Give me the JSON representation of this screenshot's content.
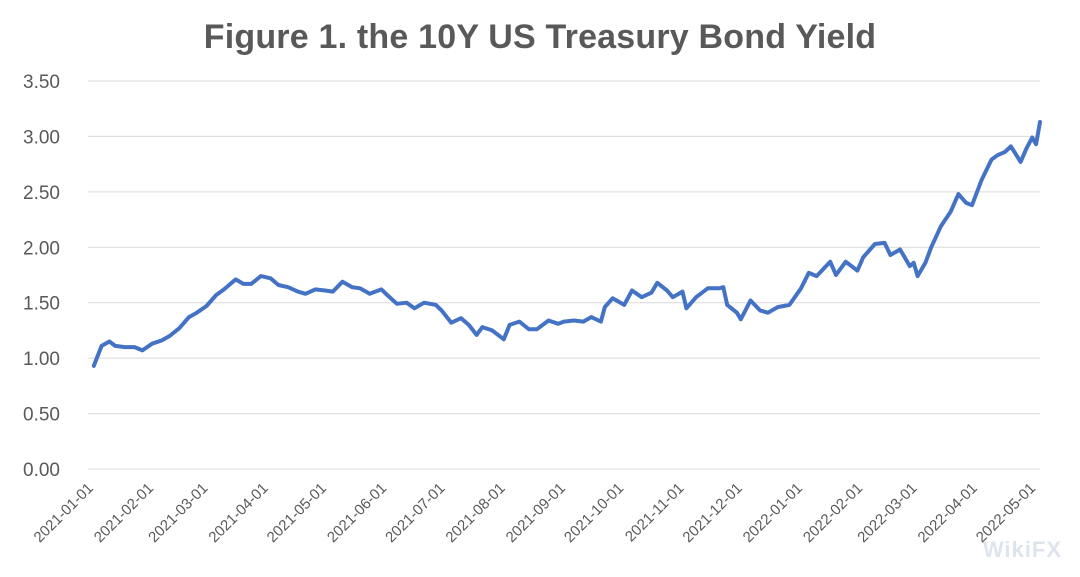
{
  "chart_data": {
    "type": "line",
    "title": "Figure 1. the 10Y US Treasury Bond Yield",
    "xlabel": "",
    "ylabel": "",
    "ylim": [
      0,
      3.5
    ],
    "yticks": [
      "0.00",
      "0.50",
      "1.00",
      "1.50",
      "2.00",
      "2.50",
      "3.00",
      "3.50"
    ],
    "xticks": [
      "2021-01-01",
      "2021-02-01",
      "2021-03-01",
      "2021-04-01",
      "2021-05-01",
      "2021-06-01",
      "2021-07-01",
      "2021-08-01",
      "2021-09-01",
      "2021-10-01",
      "2021-11-01",
      "2021-12-01",
      "2022-01-01",
      "2022-02-01",
      "2022-03-01",
      "2022-04-01",
      "2022-05-01"
    ],
    "xlim": [
      "2021-01-01",
      "2022-05-06"
    ],
    "grid": true,
    "color": "#4472c4",
    "series": [
      {
        "points": [
          [
            "2021-01-04",
            0.93
          ],
          [
            "2021-01-08",
            1.11
          ],
          [
            "2021-01-12",
            1.15
          ],
          [
            "2021-01-15",
            1.11
          ],
          [
            "2021-01-20",
            1.1
          ],
          [
            "2021-01-25",
            1.1
          ],
          [
            "2021-01-29",
            1.07
          ],
          [
            "2021-02-03",
            1.13
          ],
          [
            "2021-02-08",
            1.16
          ],
          [
            "2021-02-12",
            1.2
          ],
          [
            "2021-02-17",
            1.27
          ],
          [
            "2021-02-22",
            1.37
          ],
          [
            "2021-02-26",
            1.41
          ],
          [
            "2021-03-03",
            1.47
          ],
          [
            "2021-03-08",
            1.57
          ],
          [
            "2021-03-12",
            1.62
          ],
          [
            "2021-03-18",
            1.71
          ],
          [
            "2021-03-22",
            1.67
          ],
          [
            "2021-03-26",
            1.67
          ],
          [
            "2021-03-31",
            1.74
          ],
          [
            "2021-04-05",
            1.72
          ],
          [
            "2021-04-09",
            1.66
          ],
          [
            "2021-04-14",
            1.64
          ],
          [
            "2021-04-19",
            1.6
          ],
          [
            "2021-04-23",
            1.58
          ],
          [
            "2021-04-28",
            1.62
          ],
          [
            "2021-05-03",
            1.61
          ],
          [
            "2021-05-07",
            1.6
          ],
          [
            "2021-05-12",
            1.69
          ],
          [
            "2021-05-17",
            1.64
          ],
          [
            "2021-05-21",
            1.63
          ],
          [
            "2021-05-26",
            1.58
          ],
          [
            "2021-06-01",
            1.62
          ],
          [
            "2021-06-04",
            1.57
          ],
          [
            "2021-06-09",
            1.49
          ],
          [
            "2021-06-14",
            1.5
          ],
          [
            "2021-06-18",
            1.45
          ],
          [
            "2021-06-23",
            1.5
          ],
          [
            "2021-06-29",
            1.48
          ],
          [
            "2021-07-02",
            1.43
          ],
          [
            "2021-07-07",
            1.32
          ],
          [
            "2021-07-12",
            1.36
          ],
          [
            "2021-07-16",
            1.3
          ],
          [
            "2021-07-20",
            1.21
          ],
          [
            "2021-07-23",
            1.28
          ],
          [
            "2021-07-28",
            1.25
          ],
          [
            "2021-08-03",
            1.17
          ],
          [
            "2021-08-06",
            1.3
          ],
          [
            "2021-08-11",
            1.33
          ],
          [
            "2021-08-16",
            1.26
          ],
          [
            "2021-08-20",
            1.26
          ],
          [
            "2021-08-26",
            1.34
          ],
          [
            "2021-08-31",
            1.31
          ],
          [
            "2021-09-03",
            1.33
          ],
          [
            "2021-09-08",
            1.34
          ],
          [
            "2021-09-13",
            1.33
          ],
          [
            "2021-09-17",
            1.37
          ],
          [
            "2021-09-22",
            1.33
          ],
          [
            "2021-09-24",
            1.46
          ],
          [
            "2021-09-28",
            1.54
          ],
          [
            "2021-10-04",
            1.48
          ],
          [
            "2021-10-08",
            1.61
          ],
          [
            "2021-10-13",
            1.55
          ],
          [
            "2021-10-18",
            1.59
          ],
          [
            "2021-10-21",
            1.68
          ],
          [
            "2021-10-26",
            1.61
          ],
          [
            "2021-10-29",
            1.55
          ],
          [
            "2021-11-03",
            1.6
          ],
          [
            "2021-11-05",
            1.45
          ],
          [
            "2021-11-10",
            1.55
          ],
          [
            "2021-11-16",
            1.63
          ],
          [
            "2021-11-22",
            1.63
          ],
          [
            "2021-11-24",
            1.64
          ],
          [
            "2021-11-26",
            1.48
          ],
          [
            "2021-12-01",
            1.41
          ],
          [
            "2021-12-03",
            1.35
          ],
          [
            "2021-12-08",
            1.52
          ],
          [
            "2021-12-13",
            1.43
          ],
          [
            "2021-12-17",
            1.41
          ],
          [
            "2021-12-22",
            1.46
          ],
          [
            "2021-12-28",
            1.48
          ],
          [
            "2022-01-03",
            1.63
          ],
          [
            "2022-01-07",
            1.77
          ],
          [
            "2022-01-11",
            1.74
          ],
          [
            "2022-01-18",
            1.87
          ],
          [
            "2022-01-21",
            1.75
          ],
          [
            "2022-01-26",
            1.87
          ],
          [
            "2022-02-01",
            1.79
          ],
          [
            "2022-02-04",
            1.91
          ],
          [
            "2022-02-10",
            2.03
          ],
          [
            "2022-02-15",
            2.04
          ],
          [
            "2022-02-18",
            1.93
          ],
          [
            "2022-02-23",
            1.98
          ],
          [
            "2022-02-28",
            1.83
          ],
          [
            "2022-03-02",
            1.86
          ],
          [
            "2022-03-04",
            1.74
          ],
          [
            "2022-03-08",
            1.86
          ],
          [
            "2022-03-11",
            2.0
          ],
          [
            "2022-03-16",
            2.19
          ],
          [
            "2022-03-21",
            2.32
          ],
          [
            "2022-03-25",
            2.48
          ],
          [
            "2022-03-29",
            2.4
          ],
          [
            "2022-04-01",
            2.38
          ],
          [
            "2022-04-06",
            2.61
          ],
          [
            "2022-04-11",
            2.79
          ],
          [
            "2022-04-14",
            2.83
          ],
          [
            "2022-04-18",
            2.86
          ],
          [
            "2022-04-21",
            2.91
          ],
          [
            "2022-04-26",
            2.77
          ],
          [
            "2022-04-29",
            2.89
          ],
          [
            "2022-05-02",
            2.99
          ],
          [
            "2022-05-04",
            2.93
          ],
          [
            "2022-05-06",
            3.13
          ]
        ]
      }
    ]
  },
  "watermark": "WikiFX"
}
